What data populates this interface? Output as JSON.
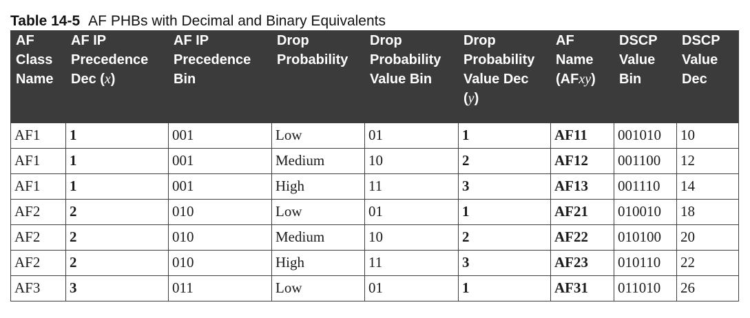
{
  "caption": {
    "label": "Table 14-5",
    "title": "AF PHBs with Decimal and Binary Equivalents"
  },
  "headers": [
    {
      "lines": [
        "AF",
        "Class",
        "Name"
      ]
    },
    {
      "lines": [
        "AF IP",
        "Precedence",
        "Dec (",
        "x",
        ")"
      ]
    },
    {
      "lines": [
        "AF IP",
        "Precedence",
        "Bin"
      ]
    },
    {
      "lines": [
        "Drop",
        "Probability"
      ]
    },
    {
      "lines": [
        "Drop",
        "Probability",
        "Value Bin"
      ]
    },
    {
      "lines": [
        "Drop",
        "Probability",
        "Value Dec",
        "(",
        "y",
        ")"
      ]
    },
    {
      "lines": [
        "AF",
        "Name",
        "(AF",
        "xy",
        ")"
      ]
    },
    {
      "lines": [
        "DSCP",
        "Value",
        "Bin"
      ]
    },
    {
      "lines": [
        "DSCP",
        "Value",
        "Dec"
      ]
    }
  ],
  "rows": [
    [
      "AF1",
      "1",
      "001",
      "Low",
      "01",
      "1",
      "AF11",
      "001010",
      "10"
    ],
    [
      "AF1",
      "1",
      "001",
      "Medium",
      "10",
      "2",
      "AF12",
      "001100",
      "12"
    ],
    [
      "AF1",
      "1",
      "001",
      "High",
      "11",
      "3",
      "AF13",
      "001110",
      "14"
    ],
    [
      "AF2",
      "2",
      "010",
      "Low",
      "01",
      "1",
      "AF21",
      "010010",
      "18"
    ],
    [
      "AF2",
      "2",
      "010",
      "Medium",
      "10",
      "2",
      "AF22",
      "010100",
      "20"
    ],
    [
      "AF2",
      "2",
      "010",
      "High",
      "11",
      "3",
      "AF23",
      "010110",
      "22"
    ],
    [
      "AF3",
      "3",
      "011",
      "Low",
      "01",
      "1",
      "AF31",
      "011010",
      "26"
    ]
  ]
}
